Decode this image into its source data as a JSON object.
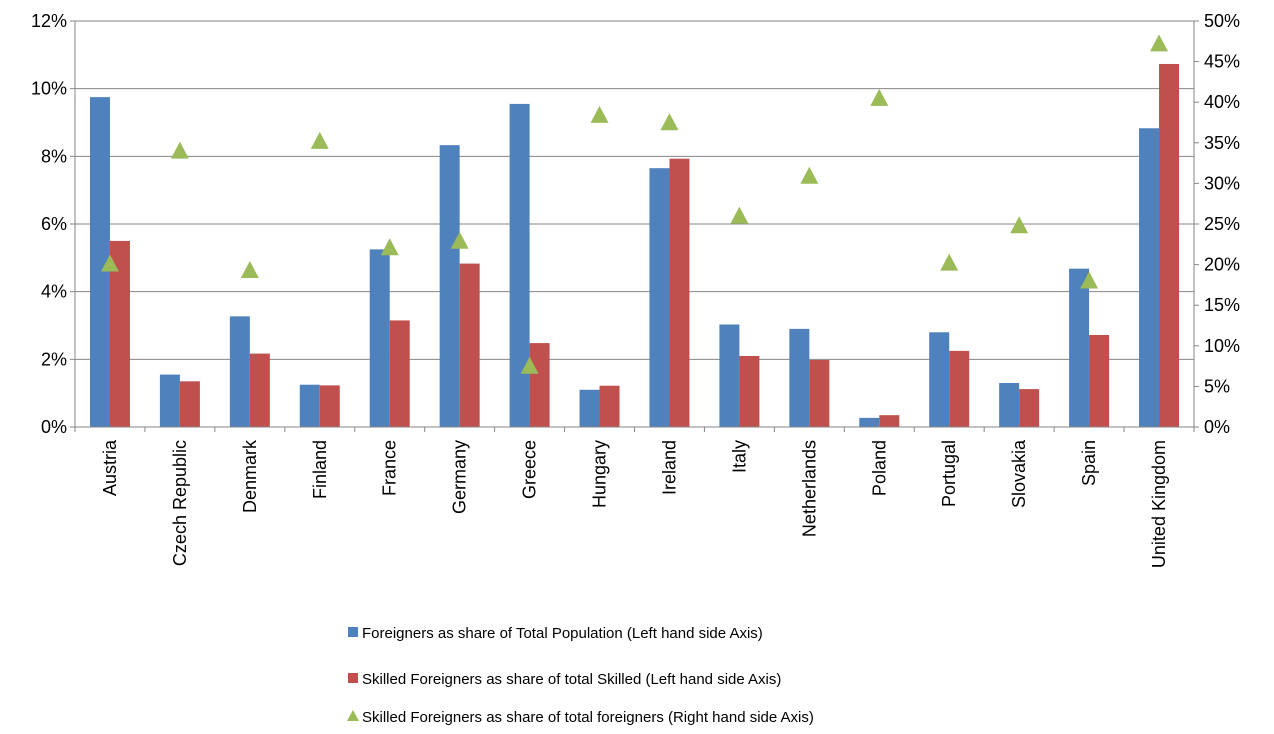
{
  "chart_data": {
    "type": "bar",
    "title": "",
    "categories": [
      "Austria",
      "Czech Republic",
      "Denmark",
      "Finland",
      "France",
      "Germany",
      "Greece",
      "Hungary",
      "Ireland",
      "Italy",
      "Netherlands",
      "Poland",
      "Portugal",
      "Slovakia",
      "Spain",
      "United Kingdom"
    ],
    "series": [
      {
        "name": "Foreigners as share of Total Population (Left hand side Axis)",
        "kind": "bar",
        "axis": "left",
        "color": "#4f81bd",
        "values": [
          9.75,
          1.55,
          3.27,
          1.25,
          5.25,
          8.33,
          9.55,
          1.1,
          7.65,
          3.03,
          2.9,
          0.27,
          2.8,
          1.3,
          4.68,
          8.83
        ]
      },
      {
        "name": "Skilled Foreigners as share of total Skilled  (Left hand side Axis)",
        "kind": "bar",
        "axis": "left",
        "color": "#c0504d",
        "values": [
          5.5,
          1.35,
          2.17,
          1.23,
          3.15,
          4.83,
          2.48,
          1.22,
          7.93,
          2.1,
          1.98,
          0.35,
          2.25,
          1.12,
          2.72,
          10.73
        ]
      },
      {
        "name": "Skilled Foreigners as share of total foreigners (Right hand side Axis)",
        "kind": "scatter",
        "axis": "right",
        "color": "#9bbb59",
        "values": [
          20.2,
          34.1,
          19.4,
          35.3,
          22.2,
          23.0,
          7.6,
          38.5,
          37.6,
          26.1,
          31.0,
          40.6,
          20.3,
          24.9,
          18.1,
          47.3
        ]
      }
    ],
    "y_left": {
      "min": 0,
      "max": 12,
      "step": 2,
      "tick_labels": [
        "0%",
        "2%",
        "4%",
        "6%",
        "8%",
        "10%",
        "12%"
      ]
    },
    "y_right": {
      "min": 0,
      "max": 50,
      "step": 5,
      "tick_labels": [
        "0%",
        "5%",
        "10%",
        "15%",
        "20%",
        "25%",
        "30%",
        "35%",
        "40%",
        "45%",
        "50%"
      ]
    },
    "grid": true,
    "legend_position": "bottom"
  }
}
